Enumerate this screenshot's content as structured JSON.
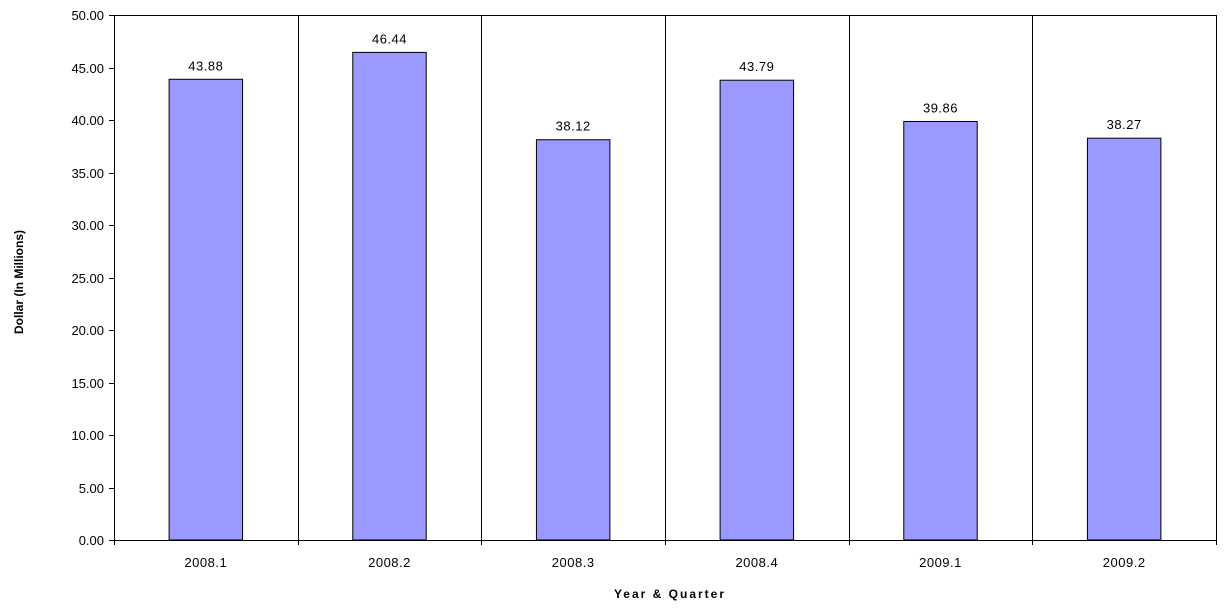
{
  "chart_data": {
    "type": "bar",
    "title": "",
    "xlabel": "Year & Quarter",
    "ylabel": "Dollar (In Millions)",
    "categories": [
      "2008.1",
      "2008.2",
      "2008.3",
      "2008.4",
      "2009.1",
      "2009.2"
    ],
    "series": [
      {
        "values": [
          43.88,
          46.44,
          38.12,
          43.79,
          39.86,
          38.27
        ]
      }
    ],
    "data_labels": [
      "43.88",
      "46.44",
      "38.12",
      "43.79",
      "39.86",
      "38.27"
    ],
    "ylim": [
      0,
      50
    ],
    "y_ticks": [
      "0.00",
      "5.00",
      "10.00",
      "15.00",
      "20.00",
      "25.00",
      "30.00",
      "35.00",
      "40.00",
      "45.00",
      "50.00"
    ],
    "grid": "vertical separators between categories",
    "legend": "none",
    "colors": {
      "bar_fill": "#9999ff",
      "bar_stroke": "#000000",
      "axis": "#000000",
      "grid": "#000000",
      "background": "#ffffff"
    }
  }
}
